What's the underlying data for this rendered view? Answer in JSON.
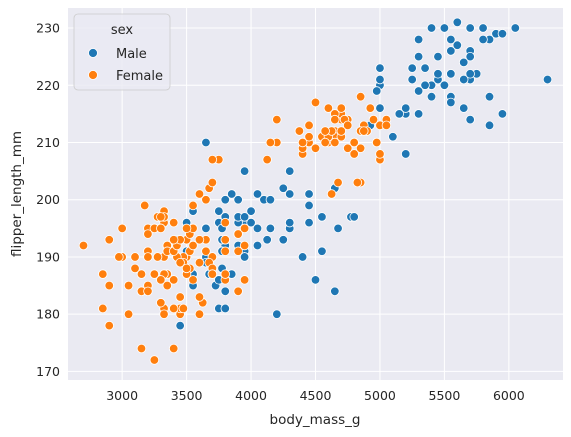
{
  "colors": {
    "plot_bg": "#EAEAF2",
    "grid": "#FFFFFF",
    "Male": "#1F77B4",
    "Female": "#FF7F0E",
    "marker_edge": "#FFFFFF"
  },
  "chart_data": {
    "type": "scatter",
    "title": "",
    "xlabel": "body_mass_g",
    "ylabel": "flipper_length_mm",
    "xlim": [
      2580,
      6420
    ],
    "ylim": [
      168.5,
      233.5
    ],
    "x_ticks": [
      3000,
      3500,
      4000,
      4500,
      5000,
      5500,
      6000
    ],
    "y_ticks": [
      170,
      180,
      190,
      200,
      210,
      220,
      230
    ],
    "grid": true,
    "legend": {
      "title": "sex",
      "position": "upper-left",
      "entries": [
        "Male",
        "Female"
      ]
    },
    "series": [
      {
        "name": "Male",
        "points": [
          [
            3750,
            181
          ],
          [
            3650,
            190
          ],
          [
            4675,
            195
          ],
          [
            3800,
            193
          ],
          [
            4400,
            190
          ],
          [
            4500,
            186
          ],
          [
            4200,
            180
          ],
          [
            3950,
            196
          ],
          [
            3800,
            181
          ],
          [
            3550,
            185
          ],
          [
            4300,
            195
          ],
          [
            3900,
            197
          ],
          [
            4650,
            184
          ],
          [
            3900,
            194
          ],
          [
            3800,
            192
          ],
          [
            3775,
            193
          ],
          [
            4150,
            195
          ],
          [
            3950,
            191
          ],
          [
            4000,
            196
          ],
          [
            3900,
            192
          ],
          [
            3775,
            191
          ],
          [
            4450,
            199
          ],
          [
            4150,
            195
          ],
          [
            4550,
            197
          ],
          [
            3950,
            190
          ],
          [
            3500,
            196
          ],
          [
            3675,
            187
          ],
          [
            4450,
            196
          ],
          [
            4250,
            193
          ],
          [
            4000,
            198
          ],
          [
            3850,
            187
          ],
          [
            3750,
            198
          ],
          [
            3650,
            189
          ],
          [
            3850,
            201
          ],
          [
            4250,
            193
          ],
          [
            3750,
            196
          ],
          [
            3800,
            184
          ],
          [
            3650,
            195
          ],
          [
            3950,
            190
          ],
          [
            3900,
            196
          ],
          [
            3425,
            193
          ],
          [
            3800,
            193
          ],
          [
            3650,
            195
          ],
          [
            3550,
            187
          ],
          [
            3650,
            195
          ],
          [
            3725,
            185
          ],
          [
            4050,
            195
          ],
          [
            3800,
            200
          ],
          [
            3750,
            186
          ],
          [
            4775,
            197
          ],
          [
            3500,
            191
          ],
          [
            3900,
            197
          ],
          [
            3700,
            190
          ],
          [
            3900,
            200
          ],
          [
            3550,
            198
          ],
          [
            3775,
            188
          ],
          [
            4050,
            201
          ],
          [
            3775,
            195
          ],
          [
            3800,
            193
          ],
          [
            3950,
            197
          ],
          [
            4250,
            202
          ],
          [
            3650,
            210
          ],
          [
            3450,
            178
          ],
          [
            3950,
            205
          ],
          [
            3350,
            192
          ],
          [
            4100,
            200
          ],
          [
            3950,
            190
          ],
          [
            4550,
            191
          ],
          [
            4300,
            196
          ],
          [
            4125,
            193
          ],
          [
            3800,
            197
          ],
          [
            4050,
            192
          ],
          [
            5700,
            230
          ],
          [
            5700,
            221
          ],
          [
            5400,
            218
          ],
          [
            5200,
            215
          ],
          [
            5100,
            211
          ],
          [
            5650,
            221
          ],
          [
            5550,
            228
          ],
          [
            5850,
            218
          ],
          [
            5850,
            228
          ],
          [
            5300,
            219
          ],
          [
            5200,
            215
          ],
          [
            5550,
            218
          ],
          [
            5600,
            231
          ],
          [
            5200,
            216
          ],
          [
            5750,
            222
          ],
          [
            6300,
            221
          ],
          [
            5900,
            229
          ],
          [
            5000,
            220
          ],
          [
            5800,
            230
          ],
          [
            5550,
            222
          ],
          [
            5650,
            224
          ],
          [
            5550,
            222
          ],
          [
            5950,
            229
          ],
          [
            5000,
            223
          ],
          [
            5550,
            217
          ],
          [
            5700,
            226
          ],
          [
            5450,
            225
          ],
          [
            5000,
            221
          ],
          [
            5800,
            228
          ],
          [
            5400,
            230
          ],
          [
            5300,
            215
          ],
          [
            5550,
            226
          ],
          [
            4925,
            213
          ],
          [
            5250,
            221
          ],
          [
            5350,
            223
          ],
          [
            5000,
            216
          ],
          [
            5600,
            227
          ],
          [
            5300,
            225
          ],
          [
            5850,
            213
          ],
          [
            5500,
            230
          ],
          [
            6050,
            230
          ],
          [
            5400,
            220
          ],
          [
            5700,
            222
          ],
          [
            5150,
            215
          ],
          [
            5650,
            216
          ],
          [
            4975,
            219
          ],
          [
            5950,
            215
          ],
          [
            5250,
            223
          ],
          [
            5450,
            221
          ],
          [
            5300,
            228
          ],
          [
            5500,
            220
          ],
          [
            5700,
            214
          ],
          [
            5200,
            208
          ],
          [
            5450,
            222
          ],
          [
            5800,
            230
          ],
          [
            5350,
            220
          ],
          [
            5700,
            225
          ],
          [
            4300,
            205
          ],
          [
            4150,
            200
          ],
          [
            4300,
            201
          ],
          [
            4650,
            202
          ],
          [
            4800,
            197
          ],
          [
            4450,
            201
          ]
        ]
      },
      {
        "name": "Female",
        "points": [
          [
            3800,
            186
          ],
          [
            3250,
            195
          ],
          [
            3450,
            193
          ],
          [
            3625,
            182
          ],
          [
            3200,
            185
          ],
          [
            3700,
            190
          ],
          [
            3450,
            180
          ],
          [
            3325,
            181
          ],
          [
            3400,
            186
          ],
          [
            3800,
            191
          ],
          [
            2900,
            185
          ],
          [
            3200,
            195
          ],
          [
            3150,
            184
          ],
          [
            3150,
            174
          ],
          [
            3050,
            180
          ],
          [
            3450,
            181
          ],
          [
            3525,
            188
          ],
          [
            3950,
            192
          ],
          [
            3325,
            196
          ],
          [
            3475,
            181
          ],
          [
            3325,
            180
          ],
          [
            3150,
            184
          ],
          [
            3300,
            182
          ],
          [
            3550,
            199
          ],
          [
            3500,
            193
          ],
          [
            3325,
            190
          ],
          [
            3600,
            183
          ],
          [
            3900,
            184
          ],
          [
            3200,
            191
          ],
          [
            3650,
            193
          ],
          [
            3600,
            189
          ],
          [
            3500,
            190
          ],
          [
            3000,
            195
          ],
          [
            3275,
            190
          ],
          [
            3475,
            190
          ],
          [
            3525,
            191
          ],
          [
            3000,
            190
          ],
          [
            3425,
            190
          ],
          [
            3675,
            189
          ],
          [
            3600,
            180
          ],
          [
            3500,
            187
          ],
          [
            3475,
            189
          ],
          [
            3350,
            187
          ],
          [
            3800,
            187
          ],
          [
            3400,
            174
          ],
          [
            3200,
            190
          ],
          [
            3100,
            190
          ],
          [
            3550,
            186
          ],
          [
            3350,
            192
          ],
          [
            3150,
            187
          ],
          [
            3300,
            195
          ],
          [
            3050,
            185
          ],
          [
            2850,
            187
          ],
          [
            3400,
            181
          ],
          [
            3325,
            187
          ],
          [
            3350,
            191
          ],
          [
            3300,
            186
          ],
          [
            3400,
            191
          ],
          [
            3100,
            188
          ],
          [
            3450,
            189
          ],
          [
            3650,
            191
          ],
          [
            3450,
            183
          ],
          [
            2900,
            178
          ],
          [
            2700,
            192
          ],
          [
            2850,
            181
          ],
          [
            2975,
            190
          ],
          [
            3200,
            184
          ],
          [
            3950,
            186
          ],
          [
            3700,
            188
          ],
          [
            3325,
            198
          ],
          [
            3350,
            185
          ],
          [
            3250,
            187
          ],
          [
            3325,
            197
          ],
          [
            2900,
            193
          ],
          [
            3500,
            188
          ],
          [
            3525,
            194
          ],
          [
            3250,
            172
          ],
          [
            3425,
            192
          ],
          [
            3900,
            194
          ],
          [
            3750,
            207
          ],
          [
            3175,
            199
          ],
          [
            3250,
            195
          ],
          [
            3275,
            197
          ],
          [
            3675,
            202
          ],
          [
            3550,
            195
          ],
          [
            3400,
            196
          ],
          [
            3700,
            187
          ],
          [
            3450,
            193
          ],
          [
            3600,
            201
          ],
          [
            3800,
            196
          ],
          [
            3200,
            194
          ],
          [
            3650,
            200
          ],
          [
            3550,
            192
          ],
          [
            3300,
            197
          ],
          [
            3300,
            195
          ],
          [
            3400,
            193
          ],
          [
            3600,
            193
          ],
          [
            3950,
            195
          ],
          [
            3700,
            203
          ],
          [
            4125,
            207
          ],
          [
            3700,
            187
          ],
          [
            3900,
            191
          ],
          [
            3800,
            193
          ],
          [
            3500,
            195
          ],
          [
            3700,
            207
          ],
          [
            4450,
            210
          ],
          [
            4550,
            211
          ],
          [
            4800,
            210
          ],
          [
            4400,
            210
          ],
          [
            4650,
            212
          ],
          [
            4650,
            211
          ],
          [
            4200,
            210
          ],
          [
            4150,
            210
          ],
          [
            4800,
            208
          ],
          [
            5000,
            207
          ],
          [
            4400,
            208
          ],
          [
            5000,
            208
          ],
          [
            4600,
            210
          ],
          [
            4700,
            211
          ],
          [
            5050,
            214
          ],
          [
            4200,
            214
          ],
          [
            4400,
            209
          ],
          [
            4700,
            214
          ],
          [
            4750,
            214
          ],
          [
            4600,
            210
          ],
          [
            4700,
            215
          ],
          [
            4750,
            209
          ],
          [
            4600,
            216
          ],
          [
            4450,
            213
          ],
          [
            4500,
            217
          ],
          [
            4450,
            211
          ],
          [
            4850,
            209
          ],
          [
            4650,
            210
          ],
          [
            4925,
            216
          ],
          [
            4975,
            210
          ],
          [
            4850,
            218
          ],
          [
            4600,
            211
          ],
          [
            4725,
            214
          ],
          [
            4800,
            210
          ],
          [
            4500,
            209
          ],
          [
            4575,
            210
          ],
          [
            4375,
            212
          ],
          [
            4700,
            216
          ],
          [
            4875,
            213
          ],
          [
            5000,
            213
          ],
          [
            4625,
            212
          ],
          [
            4950,
            214
          ],
          [
            4375,
            212
          ],
          [
            4925,
            216
          ],
          [
            5050,
            213
          ],
          [
            4575,
            212
          ],
          [
            4650,
            215
          ],
          [
            4900,
            212
          ],
          [
            4850,
            212
          ],
          [
            4650,
            214
          ],
          [
            4750,
            213
          ],
          [
            4400,
            210
          ],
          [
            4875,
            212
          ],
          [
            4850,
            203
          ],
          [
            4825,
            203
          ],
          [
            4625,
            201
          ],
          [
            4675,
            203
          ],
          [
            4700,
            212
          ]
        ]
      }
    ]
  }
}
